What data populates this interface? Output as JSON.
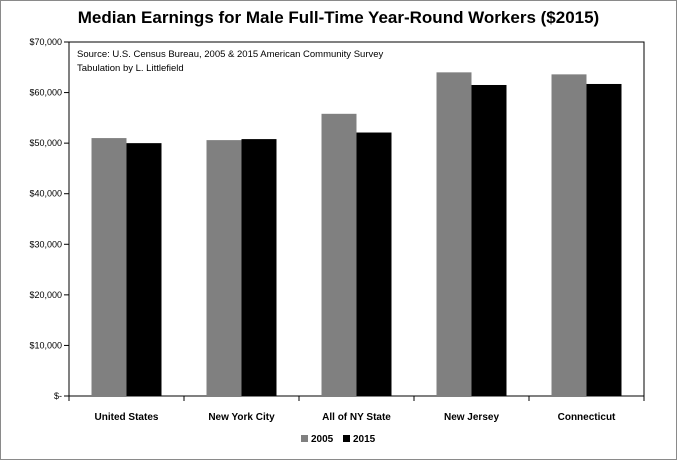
{
  "chart_data": {
    "type": "bar",
    "title": "Median Earnings for Male Full-Time Year-Round Workers ($2015)",
    "categories": [
      "United States",
      "New York City",
      "All of NY State",
      "New Jersey",
      "Connecticut"
    ],
    "series": [
      {
        "name": "2005",
        "values": [
          51000,
          50600,
          55800,
          64000,
          63600
        ],
        "color": "#808080"
      },
      {
        "name": "2015",
        "values": [
          50000,
          50800,
          52100,
          61500,
          61700
        ],
        "color": "#000000"
      }
    ],
    "ylim": [
      0,
      70000
    ],
    "yticks": [
      {
        "value": 0,
        "label": "$-"
      },
      {
        "value": 10000,
        "label": "$10,000"
      },
      {
        "value": 20000,
        "label": "$20,000"
      },
      {
        "value": 30000,
        "label": "$30,000"
      },
      {
        "value": 40000,
        "label": "$40,000"
      },
      {
        "value": 50000,
        "label": "$50,000"
      },
      {
        "value": 60000,
        "label": "$60,000"
      },
      {
        "value": 70000,
        "label": "$70,000"
      }
    ],
    "annotations": [
      "Source:  U.S. Census Bureau, 2005 & 2015 American Community Survey",
      "Tabulation by L. Littlefield"
    ],
    "grid": false,
    "legend_position": "bottom-center"
  }
}
